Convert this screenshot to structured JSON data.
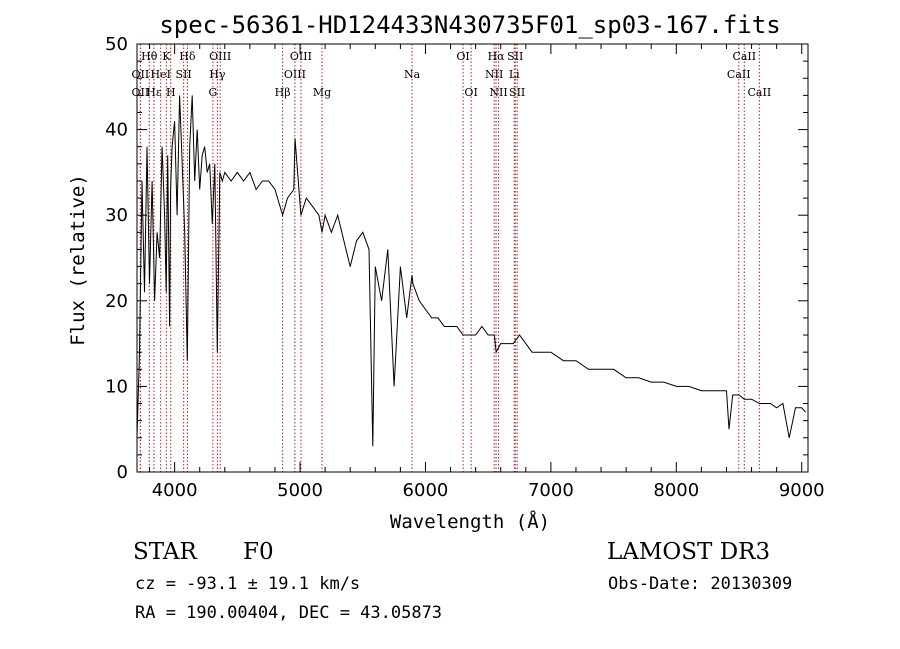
{
  "chart_data": {
    "type": "line",
    "title": "spec-56361-HD124433N430735F01_sp03-167.fits",
    "xlabel": "Wavelength (Å)",
    "ylabel": "Flux (relative)",
    "xlim": [
      3700,
      9050
    ],
    "ylim": [
      0,
      50
    ],
    "x_ticks": [
      4000,
      5000,
      6000,
      7000,
      8000,
      9000
    ],
    "y_ticks": [
      0,
      10,
      20,
      30,
      40,
      50
    ],
    "series": [
      {
        "name": "flux",
        "x": [
          3700,
          3720,
          3740,
          3760,
          3780,
          3800,
          3820,
          3840,
          3860,
          3880,
          3900,
          3920,
          3933,
          3945,
          3960,
          3968,
          3980,
          4000,
          4020,
          4040,
          4060,
          4080,
          4101,
          4120,
          4140,
          4160,
          4180,
          4200,
          4220,
          4240,
          4260,
          4280,
          4300,
          4320,
          4340,
          4360,
          4380,
          4400,
          4450,
          4500,
          4550,
          4600,
          4650,
          4700,
          4750,
          4800,
          4861,
          4900,
          4950,
          4960,
          5007,
          5050,
          5100,
          5150,
          5175,
          5200,
          5250,
          5300,
          5350,
          5400,
          5450,
          5500,
          5550,
          5580,
          5600,
          5650,
          5700,
          5750,
          5800,
          5850,
          5893,
          5900,
          5950,
          6000,
          6050,
          6100,
          6150,
          6200,
          6250,
          6300,
          6350,
          6400,
          6450,
          6500,
          6550,
          6563,
          6600,
          6650,
          6700,
          6750,
          6800,
          6850,
          6900,
          6950,
          7000,
          7100,
          7200,
          7300,
          7400,
          7500,
          7600,
          7700,
          7800,
          7900,
          8000,
          8100,
          8200,
          8300,
          8400,
          8420,
          8450,
          8500,
          8542,
          8600,
          8662,
          8700,
          8750,
          8800,
          8850,
          8900,
          8950,
          9000,
          9030
        ],
        "values": [
          4,
          14,
          34,
          21,
          38,
          22,
          34,
          20,
          28,
          25,
          38,
          30,
          21,
          37,
          17,
          33,
          38,
          41,
          30,
          44,
          36,
          28,
          13,
          38,
          44,
          34,
          40,
          33,
          37,
          38,
          35,
          36,
          29,
          36,
          14,
          35,
          34,
          35,
          34,
          35,
          34,
          35,
          33,
          34,
          34,
          33,
          30,
          32,
          33,
          39,
          30,
          32,
          31,
          30,
          28,
          30,
          28,
          30,
          27,
          24,
          27,
          28,
          26,
          3,
          24,
          20,
          26,
          10,
          24,
          18,
          23,
          22,
          20,
          19,
          18,
          18,
          17,
          17,
          17,
          16,
          16,
          16,
          17,
          16,
          16,
          14,
          15,
          15,
          15,
          16,
          15,
          14,
          14,
          14,
          14,
          13,
          13,
          12,
          12,
          12,
          11,
          11,
          10.5,
          10.5,
          10,
          10,
          9.5,
          9.5,
          9.5,
          5,
          9,
          9,
          8.5,
          8.5,
          8,
          8,
          8,
          7.5,
          8,
          4,
          7.5,
          7.5,
          7
        ]
      }
    ],
    "lines": [
      {
        "label": "OII",
        "wavelength": 3727,
        "row": 2
      },
      {
        "label": "OII",
        "wavelength": 3727,
        "row": 3
      },
      {
        "label": "Hθ",
        "wavelength": 3798,
        "row": 1
      },
      {
        "label": "Hε",
        "wavelength": 3835,
        "row": 3
      },
      {
        "label": "HeI",
        "wavelength": 3889,
        "row": 2
      },
      {
        "label": "K",
        "wavelength": 3934,
        "row": 1
      },
      {
        "label": "H",
        "wavelength": 3969,
        "row": 3
      },
      {
        "label": "SII",
        "wavelength": 4072,
        "row": 2
      },
      {
        "label": "Hδ",
        "wavelength": 4102,
        "row": 1
      },
      {
        "label": "OIII",
        "wavelength": 4363,
        "row": 1
      },
      {
        "label": "Hγ",
        "wavelength": 4341,
        "row": 2
      },
      {
        "label": "G",
        "wavelength": 4305,
        "row": 3
      },
      {
        "label": "Hβ",
        "wavelength": 4861,
        "row": 3
      },
      {
        "label": "OIII",
        "wavelength": 5007,
        "row": 1
      },
      {
        "label": "OIII",
        "wavelength": 4959,
        "row": 2
      },
      {
        "label": "Mg",
        "wavelength": 5175,
        "row": 3
      },
      {
        "label": "Na",
        "wavelength": 5893,
        "row": 2
      },
      {
        "label": "OI",
        "wavelength": 6300,
        "row": 1
      },
      {
        "label": "OI",
        "wavelength": 6364,
        "row": 3
      },
      {
        "label": "Hα",
        "wavelength": 6563,
        "row": 1
      },
      {
        "label": "SII",
        "wavelength": 6716,
        "row": 1
      },
      {
        "label": "NII",
        "wavelength": 6548,
        "row": 2
      },
      {
        "label": "Li",
        "wavelength": 6708,
        "row": 2
      },
      {
        "label": "NII",
        "wavelength": 6583,
        "row": 3
      },
      {
        "label": "SII",
        "wavelength": 6731,
        "row": 3
      },
      {
        "label": "CaII",
        "wavelength": 8542,
        "row": 1
      },
      {
        "label": "CaII",
        "wavelength": 8498,
        "row": 2
      },
      {
        "label": "CaII",
        "wavelength": 8662,
        "row": 3
      }
    ]
  },
  "info": {
    "class": "STAR",
    "subclass": "F0",
    "cz": "cz = -93.1 ± 19.1 km/s",
    "radec": "RA = 190.00404, DEC =  43.05873",
    "survey": "LAMOST DR3",
    "obsdate": "Obs-Date: 20130309"
  },
  "colors": {
    "line_marker": "#b22222",
    "spectrum": "#000000"
  }
}
